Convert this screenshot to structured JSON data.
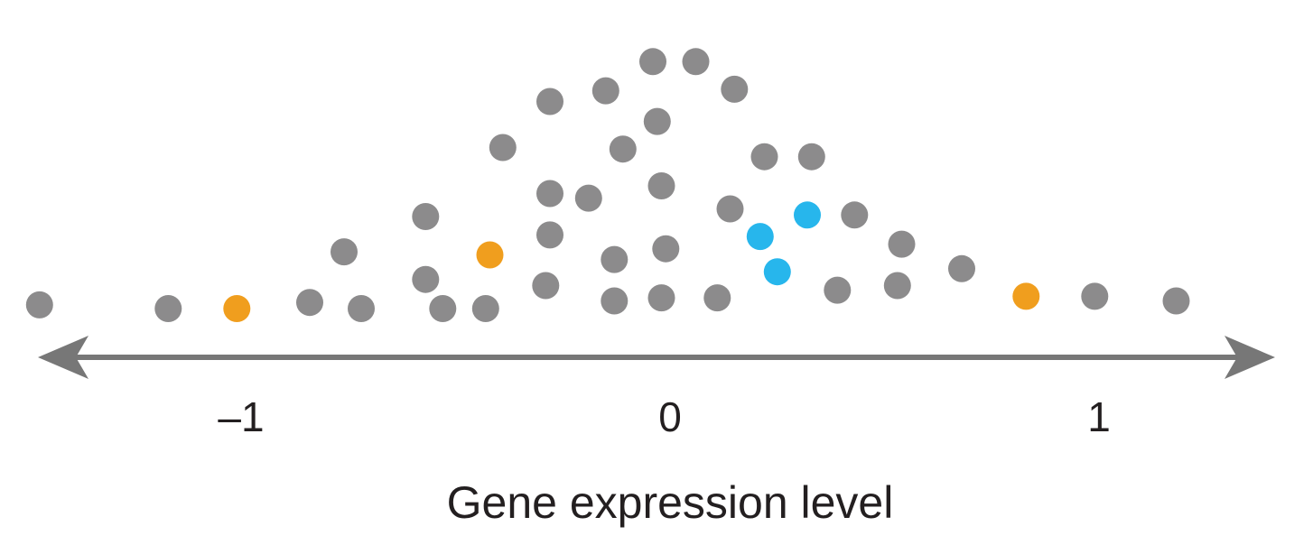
{
  "chart_data": {
    "type": "scatter",
    "title": "",
    "xlabel": "Gene expression level",
    "ylabel": "",
    "xlim": [
      -1.56,
      1.5
    ],
    "grid": false,
    "legend": "none",
    "x_ticks": [
      {
        "value": -1,
        "label": "–1"
      },
      {
        "value": 0,
        "label": "0"
      },
      {
        "value": 1,
        "label": "1"
      }
    ],
    "colors": {
      "default": "#8c8b8c",
      "orange": "#f09e1e",
      "blue": "#27b6ec",
      "axis": "#777777",
      "text": "#231f20"
    },
    "points": [
      {
        "x": -1.47,
        "row": 0.12,
        "group": "default"
      },
      {
        "x": -1.17,
        "row": 0.0,
        "group": "default"
      },
      {
        "x": -1.01,
        "row": 0.0,
        "group": "orange"
      },
      {
        "x": -0.84,
        "row": 0.2,
        "group": "default"
      },
      {
        "x": -0.72,
        "row": 0.0,
        "group": "default"
      },
      {
        "x": -0.76,
        "row": 1.85,
        "group": "default"
      },
      {
        "x": -0.57,
        "row": 3.0,
        "group": "default"
      },
      {
        "x": -0.57,
        "row": 0.95,
        "group": "default"
      },
      {
        "x": -0.53,
        "row": 0.0,
        "group": "default"
      },
      {
        "x": -0.43,
        "row": 0.0,
        "group": "default"
      },
      {
        "x": -0.42,
        "row": 1.75,
        "group": "orange"
      },
      {
        "x": -0.39,
        "row": 5.25,
        "group": "default"
      },
      {
        "x": -0.29,
        "row": 0.75,
        "group": "default"
      },
      {
        "x": -0.28,
        "row": 2.4,
        "group": "default"
      },
      {
        "x": -0.28,
        "row": 3.75,
        "group": "default"
      },
      {
        "x": -0.28,
        "row": 6.75,
        "group": "default"
      },
      {
        "x": -0.19,
        "row": 3.6,
        "group": "default"
      },
      {
        "x": -0.15,
        "row": 7.1,
        "group": "default"
      },
      {
        "x": -0.13,
        "row": 0.25,
        "group": "default"
      },
      {
        "x": -0.13,
        "row": 1.6,
        "group": "default"
      },
      {
        "x": -0.11,
        "row": 5.2,
        "group": "default"
      },
      {
        "x": -0.04,
        "row": 8.05,
        "group": "default"
      },
      {
        "x": -0.03,
        "row": 6.1,
        "group": "default"
      },
      {
        "x": -0.02,
        "row": 4.0,
        "group": "default"
      },
      {
        "x": -0.02,
        "row": 0.35,
        "group": "default"
      },
      {
        "x": -0.01,
        "row": 1.95,
        "group": "default"
      },
      {
        "x": 0.06,
        "row": 8.05,
        "group": "default"
      },
      {
        "x": 0.11,
        "row": 0.35,
        "group": "default"
      },
      {
        "x": 0.14,
        "row": 3.25,
        "group": "default"
      },
      {
        "x": 0.15,
        "row": 7.15,
        "group": "default"
      },
      {
        "x": 0.21,
        "row": 2.35,
        "group": "blue"
      },
      {
        "x": 0.25,
        "row": 1.2,
        "group": "blue"
      },
      {
        "x": 0.22,
        "row": 4.95,
        "group": "default"
      },
      {
        "x": 0.32,
        "row": 3.05,
        "group": "blue"
      },
      {
        "x": 0.33,
        "row": 4.95,
        "group": "default"
      },
      {
        "x": 0.39,
        "row": 0.6,
        "group": "default"
      },
      {
        "x": 0.43,
        "row": 3.05,
        "group": "default"
      },
      {
        "x": 0.53,
        "row": 0.75,
        "group": "default"
      },
      {
        "x": 0.54,
        "row": 2.1,
        "group": "default"
      },
      {
        "x": 0.68,
        "row": 1.3,
        "group": "default"
      },
      {
        "x": 0.83,
        "row": 0.4,
        "group": "orange"
      },
      {
        "x": 0.99,
        "row": 0.4,
        "group": "default"
      },
      {
        "x": 1.18,
        "row": 0.25,
        "group": "default"
      }
    ]
  }
}
